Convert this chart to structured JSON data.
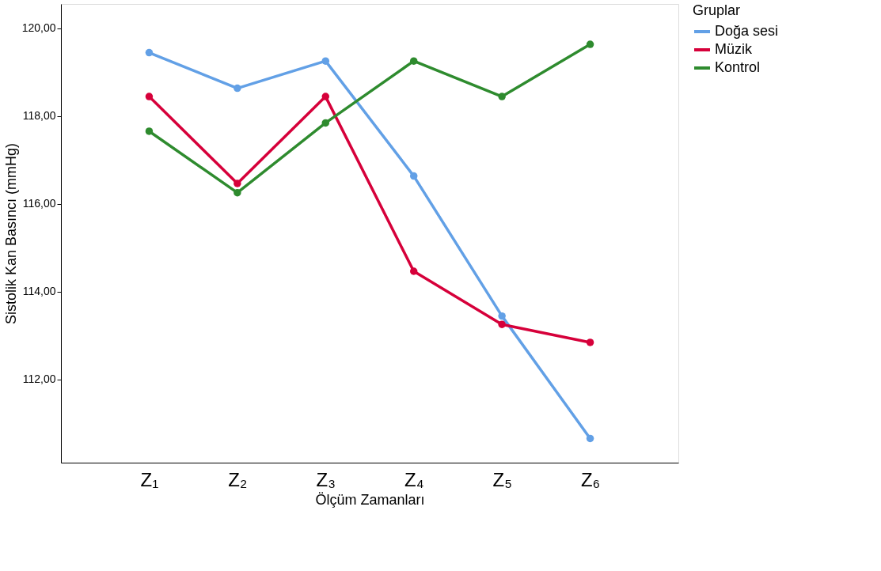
{
  "chart_data": {
    "type": "line",
    "xlabel": "Ölçüm Zamanları",
    "ylabel": "Sistolik Kan Basıncı (mmHg)",
    "legend_title": "Gruplar",
    "categories": [
      "Z₁",
      "Z₂",
      "Z₃",
      "Z₄",
      "Z₅",
      "Z₆"
    ],
    "series": [
      {
        "name": "Doğa sesi",
        "color": "#62a0e6",
        "values": [
          119.44,
          118.63,
          119.25,
          116.63,
          113.44,
          110.65
        ]
      },
      {
        "name": "Müzik",
        "color": "#d6003a",
        "values": [
          118.44,
          116.46,
          118.44,
          114.46,
          113.25,
          112.84
        ]
      },
      {
        "name": "Kontrol",
        "color": "#2e8b2e",
        "values": [
          117.65,
          116.25,
          117.84,
          119.25,
          118.44,
          119.63
        ]
      }
    ],
    "ylim": [
      110.1,
      120.55
    ],
    "yticks": [
      {
        "value": 112,
        "label": "112,00"
      },
      {
        "value": 114,
        "label": "114,00"
      },
      {
        "value": 116,
        "label": "116,00"
      },
      {
        "value": 118,
        "label": "118,00"
      },
      {
        "value": 120,
        "label": "120,00"
      }
    ],
    "marker": "circle",
    "line_style": "solid",
    "grid": false,
    "legend": "top right"
  }
}
